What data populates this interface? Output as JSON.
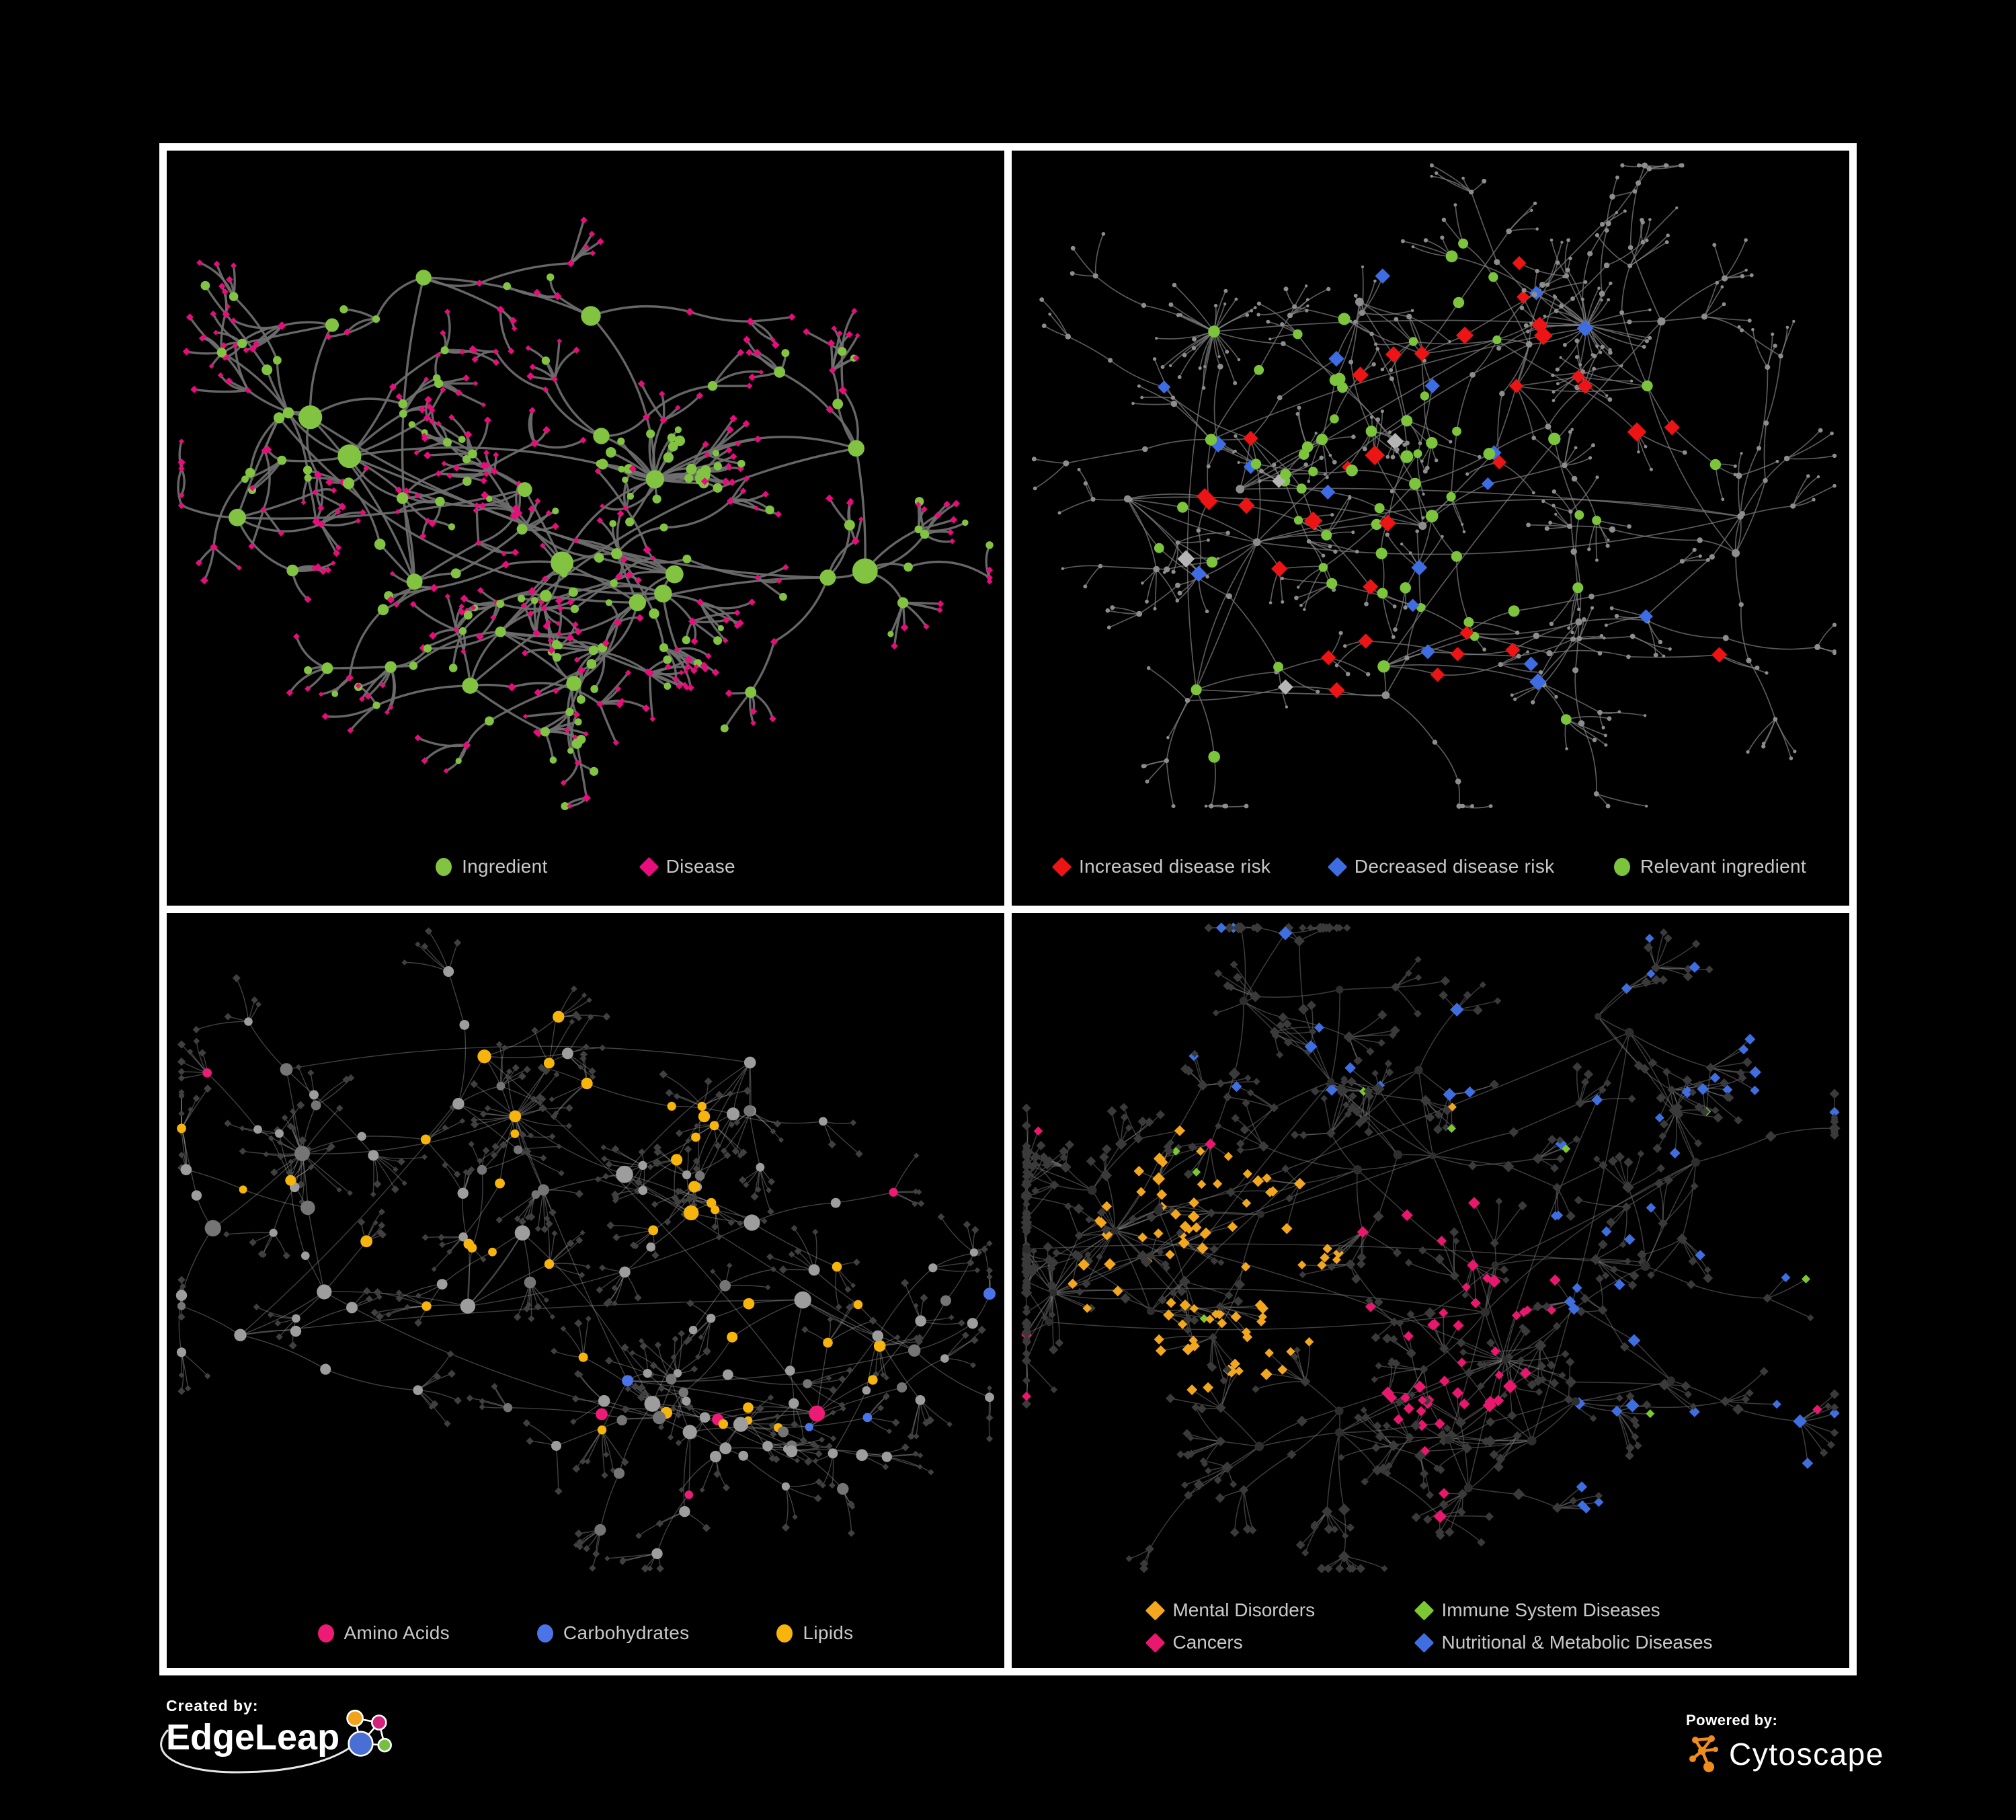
{
  "page": {
    "background": "#000000",
    "frame_color": "#ffffff"
  },
  "panels": [
    {
      "title": "ingredient-disease-network",
      "legend": [
        {
          "label": "Ingredient",
          "shape": "circle",
          "color": "#82c341"
        },
        {
          "label": "Disease",
          "shape": "diamond",
          "color": "#e70d7c"
        }
      ],
      "net": {
        "mode": "p1",
        "seed": 7,
        "hubs": 24,
        "maxBranch": 4,
        "chainMax": 2,
        "leafMin": 2,
        "leafVar": 5,
        "spread": 0.34,
        "curve": 0.5,
        "superStars": 1,
        "edge": {
          "color": "#6f6f6f",
          "width": 3.4,
          "opacity": 0.92
        },
        "colors": {
          "green": "#82c341",
          "pink": "#e70d7c"
        }
      }
    },
    {
      "title": "disease-risk-network",
      "legend": [
        {
          "label": "Increased disease risk",
          "shape": "diamond",
          "color": "#ec1414"
        },
        {
          "label": "Decreased disease risk",
          "shape": "diamond",
          "color": "#3e6ce2"
        },
        {
          "label": "Relevant ingredient",
          "shape": "circle",
          "color": "#7cc43c"
        }
      ],
      "net": {
        "mode": "p2",
        "seed": 41,
        "hubs": 26,
        "maxBranch": 4,
        "chainMax": 3,
        "leafMin": 2,
        "leafVar": 4,
        "spread": 0.4,
        "curve": 0.26,
        "superStars": 2,
        "edge": {
          "color": "#808080",
          "width": 1.7,
          "opacity": 0.7
        },
        "colors": {
          "red": "#ec1414",
          "blue": "#3e6ce2",
          "green": "#7cc43c",
          "gray": "#8d8d8d",
          "silver": "#b5b5b5"
        }
      }
    },
    {
      "title": "macronutrient-network",
      "legend": [
        {
          "label": "Amino Acids",
          "shape": "circle",
          "color": "#ee1b76"
        },
        {
          "label": "Carbohydrates",
          "shape": "circle",
          "color": "#4a74e8"
        },
        {
          "label": "Lipids",
          "shape": "circle",
          "color": "#f6b40d"
        }
      ],
      "net": {
        "mode": "p3",
        "seed": 83,
        "hubs": 26,
        "maxBranch": 4,
        "chainMax": 2,
        "leafMin": 3,
        "leafVar": 5,
        "spread": 0.38,
        "curve": 0.22,
        "superStars": 2,
        "edge": {
          "color": "#9a9a9a",
          "width": 1.4,
          "opacity": 0.42
        },
        "colors": {
          "pink": "#ee1b76",
          "blue": "#4a74e8",
          "amber": "#f6b40d",
          "circle": "#9d9d9d",
          "circleDark": "#757575",
          "diamond": "#404040"
        }
      }
    },
    {
      "title": "disease-category-network",
      "legend": [
        {
          "label": "Mental Disorders",
          "shape": "diamond",
          "color": "#f2a71e"
        },
        {
          "label": "Immune System Diseases",
          "shape": "diamond",
          "color": "#7cc832"
        },
        {
          "label": "Cancers",
          "shape": "diamond",
          "color": "#e9186e"
        },
        {
          "label": "Nutritional & Metabolic Diseases",
          "shape": "diamond",
          "color": "#3e6edf"
        }
      ],
      "net": {
        "mode": "p4",
        "seed": 129,
        "hubs": 30,
        "maxBranch": 4,
        "chainMax": 2,
        "leafMin": 3,
        "leafVar": 7,
        "spread": 0.4,
        "curve": 0.18,
        "superStars": 3,
        "edge": {
          "color": "#777777",
          "width": 1.5,
          "opacity": 0.5
        },
        "colors": {
          "orange": "#f2a71e",
          "green": "#7cc832",
          "pink": "#e9186e",
          "blue": "#3e6edf",
          "diamond": "#3a3a3a",
          "hub": "#2e2e2e"
        }
      }
    }
  ],
  "footer": {
    "created_by_label": "Created by:",
    "edgeleap_brand": "EdgeLeap",
    "powered_by_label": "Powered by:",
    "cytoscape_brand": "Cytoscape",
    "edgeleap_logo_colors": {
      "blue": "#4a6fd4",
      "orange": "#f0a31b",
      "pink": "#d4217c",
      "green": "#76bf3f"
    },
    "swoosh_color": "#ffffff",
    "cytoscape_logo_color": "#f08c1e"
  }
}
